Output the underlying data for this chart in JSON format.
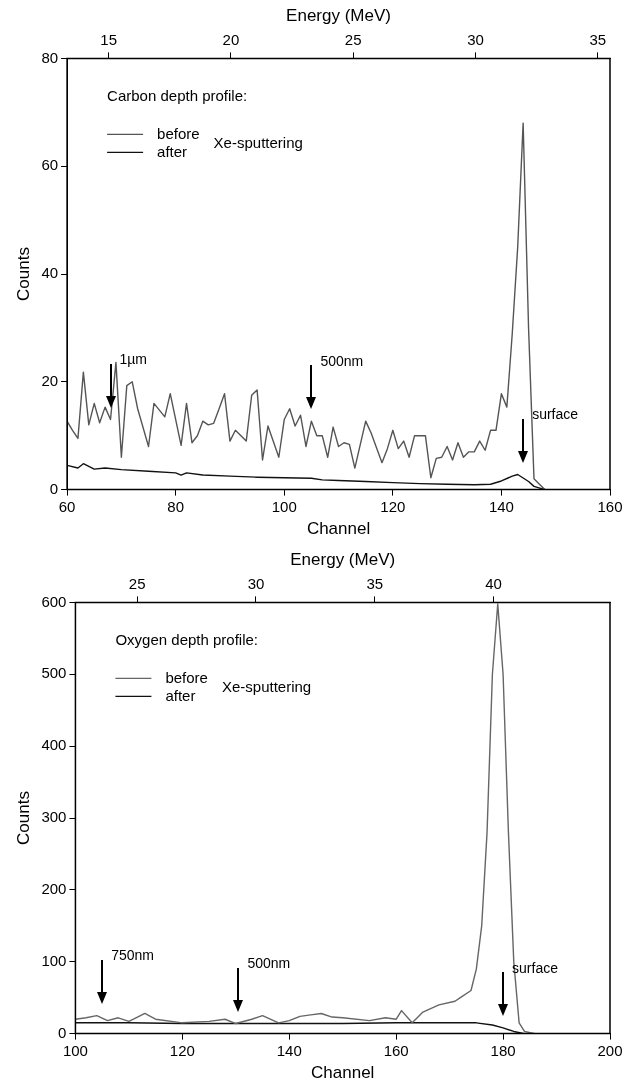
{
  "chart_data": [
    {
      "type": "line",
      "xlabel": "Channel",
      "x2label": "Energy (MeV)",
      "ylabel": "Counts",
      "xlim": [
        60,
        160
      ],
      "xticks": [
        60,
        80,
        100,
        120,
        140,
        160
      ],
      "x2lim": [
        13.3,
        35.5
      ],
      "x2ticks": [
        15,
        20,
        25,
        30,
        35
      ],
      "ylim": [
        0,
        80
      ],
      "yticks": [
        0,
        20,
        40,
        60,
        80
      ],
      "legend": "top left",
      "legend_title": "Carbon depth profile:",
      "series": [
        {
          "name": "before",
          "color": "#555555",
          "x": [
            60,
            61,
            62,
            63,
            64,
            65,
            66,
            67,
            68,
            69,
            70,
            71,
            72,
            73,
            75,
            76,
            78,
            79,
            81,
            82,
            83,
            84,
            85,
            86,
            87,
            88,
            89,
            90,
            91,
            93,
            94,
            95,
            96,
            97,
            99,
            100,
            101,
            102,
            103,
            104,
            105,
            106,
            107,
            108,
            109,
            110,
            111,
            112,
            113,
            115,
            116,
            118,
            119,
            120,
            121,
            122,
            123,
            124,
            126,
            127,
            128,
            129,
            130,
            131,
            132,
            133,
            134,
            135,
            136,
            137,
            138,
            139,
            140,
            141,
            142,
            143,
            144,
            145,
            146,
            147,
            148
          ],
          "values": [
            12.7,
            11,
            9.5,
            21.8,
            12,
            16,
            12.4,
            15.3,
            13,
            23.6,
            6,
            19.3,
            20,
            15,
            8,
            16,
            13.5,
            17.8,
            8.2,
            16,
            8.7,
            10,
            12.7,
            12,
            12.3,
            15,
            17.8,
            9,
            11,
            9,
            17.5,
            18.5,
            5.5,
            11.8,
            6,
            13,
            15,
            11.8,
            13.8,
            8,
            12.7,
            10,
            10,
            6,
            11.6,
            8,
            8.7,
            8.4,
            4,
            12.7,
            10.5,
            5,
            7.6,
            11,
            7.6,
            9,
            6,
            10,
            10,
            2.2,
            5.8,
            6,
            8,
            5.5,
            8.7,
            6,
            7,
            7,
            9,
            7.3,
            11,
            11,
            17.8,
            15.3,
            29,
            45,
            68,
            30,
            2,
            1,
            0
          ]
        },
        {
          "name": "after",
          "color": "#111111",
          "x": [
            60,
            62,
            63,
            65,
            67,
            70,
            75,
            80,
            81,
            82,
            85,
            90,
            95,
            100,
            105,
            107,
            110,
            115,
            120,
            125,
            130,
            135,
            138,
            140,
            142,
            143,
            145,
            146,
            148
          ],
          "values": [
            4.5,
            4,
            4.8,
            3.8,
            4,
            3.7,
            3.4,
            3.1,
            2.7,
            3.1,
            2.7,
            2.5,
            2.3,
            2.2,
            2.1,
            1.8,
            1.7,
            1.5,
            1.3,
            1.1,
            1,
            0.9,
            1,
            1.6,
            2.5,
            2.8,
            1.5,
            0.6,
            0
          ]
        }
      ],
      "annotations": [
        "Xe-sputtering"
      ],
      "ref_lines": [
        {
          "axis": "x",
          "value": 68,
          "label": "1µm"
        },
        {
          "axis": "x",
          "value": 105,
          "label": "500nm"
        },
        {
          "axis": "x",
          "value": 144,
          "label": "surface"
        }
      ]
    },
    {
      "type": "line",
      "xlabel": "Channel",
      "x2label": "Energy (MeV)",
      "ylabel": "Counts",
      "xlim": [
        100,
        200
      ],
      "xticks": [
        100,
        120,
        140,
        160,
        180,
        200
      ],
      "x2lim": [
        22.4,
        44.9
      ],
      "x2ticks": [
        25,
        30,
        35,
        40
      ],
      "ylim": [
        0,
        600
      ],
      "yticks": [
        0,
        100,
        200,
        300,
        400,
        500,
        600
      ],
      "legend": "top left",
      "legend_title": "Oxygen depth profile:",
      "series": [
        {
          "name": "before",
          "color": "#666666",
          "x": [
            100,
            102,
            104,
            106,
            108,
            110,
            113,
            115,
            120,
            125,
            128,
            130,
            133,
            135,
            138,
            140,
            142,
            144,
            146,
            148,
            150,
            155,
            158,
            160,
            161,
            163,
            165,
            168,
            171,
            172,
            174,
            175,
            176,
            177,
            178,
            179,
            180,
            181,
            182,
            183,
            184,
            186,
            200
          ],
          "values": [
            20,
            22,
            25,
            18,
            22,
            17,
            28,
            20,
            15,
            17,
            20,
            14,
            20,
            25,
            15,
            18,
            24,
            26,
            28,
            23,
            22,
            18,
            22,
            20,
            32,
            15,
            30,
            40,
            45,
            50,
            60,
            90,
            150,
            280,
            500,
            598,
            500,
            280,
            100,
            15,
            3,
            0,
            0
          ]
        },
        {
          "name": "after",
          "color": "#111111",
          "x": [
            100,
            110,
            120,
            130,
            140,
            150,
            160,
            170,
            175,
            178,
            180,
            182,
            184,
            200
          ],
          "values": [
            15,
            15,
            14,
            14,
            14,
            14,
            15,
            15,
            15,
            12,
            8,
            3,
            0,
            0
          ]
        }
      ],
      "annotations": [
        "Xe-sputtering"
      ],
      "ref_lines": [
        {
          "axis": "x",
          "value": 105,
          "label": "750nm"
        },
        {
          "axis": "x",
          "value": 130.5,
          "label": "500nm"
        },
        {
          "axis": "x",
          "value": 180,
          "label": "surface"
        }
      ]
    }
  ]
}
